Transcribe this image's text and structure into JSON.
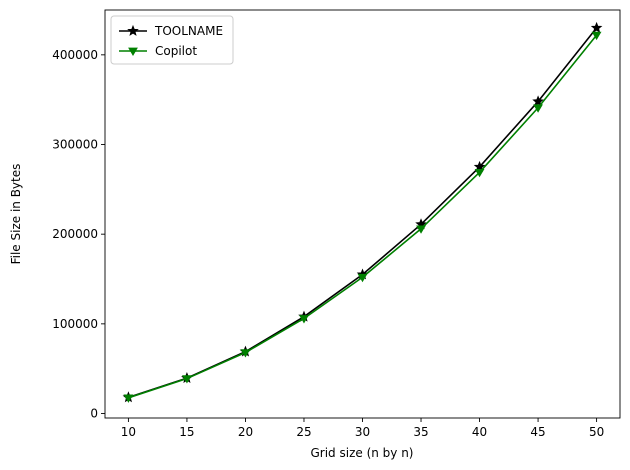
{
  "chart_data": {
    "type": "line",
    "title": "",
    "xlabel": "Grid size (n by n)",
    "ylabel": "File Size in Bytes",
    "x": [
      10,
      15,
      20,
      25,
      30,
      35,
      40,
      45,
      50
    ],
    "xlim": [
      8,
      52
    ],
    "ylim": [
      -5000,
      450000
    ],
    "xticks": [
      10,
      15,
      20,
      25,
      30,
      35,
      40,
      45,
      50
    ],
    "xtick_labels": [
      "10",
      "15",
      "20",
      "25",
      "30",
      "35",
      "40",
      "45",
      "50"
    ],
    "yticks": [
      0,
      100000,
      200000,
      300000,
      400000
    ],
    "ytick_labels": [
      "0",
      "100000",
      "200000",
      "300000",
      "400000"
    ],
    "grid": false,
    "legend_position": "top-left",
    "series": [
      {
        "name": "TOOLNAME",
        "color": "#000000",
        "marker": "star",
        "values": [
          18000,
          39500,
          69000,
          108000,
          155000,
          211000,
          275000,
          348000,
          430000
        ]
      },
      {
        "name": "Copilot",
        "color": "#008000",
        "marker": "triangle-down",
        "values": [
          17500,
          39000,
          68000,
          106000,
          152000,
          206000,
          269000,
          341000,
          422000
        ]
      }
    ]
  }
}
